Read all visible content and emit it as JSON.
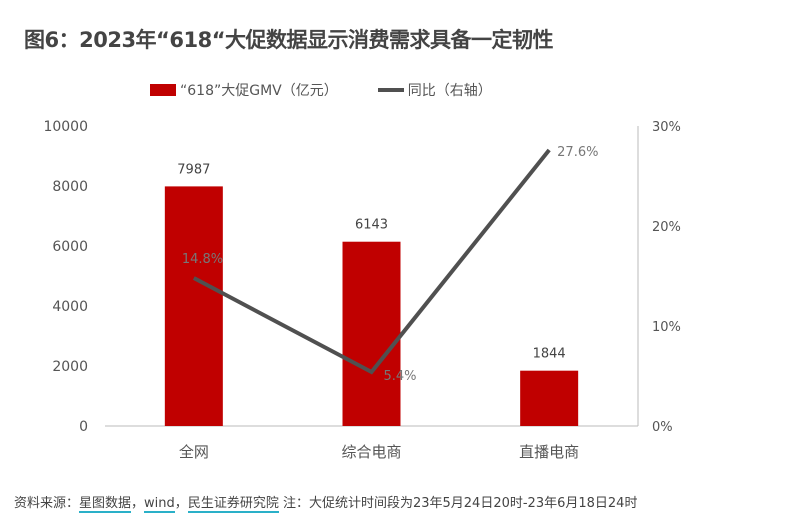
{
  "title": "图6：2023年“618“大促数据显示消费需求具备一定韧性",
  "footer": {
    "prefix": "资料来源：",
    "link1": "星图数据",
    "sep1": "，",
    "link2": "wind",
    "sep2": "，",
    "link3": "民生证券研究院",
    "note": " 注：大促统计时间段为23年5月24日20时-23年6月18日24时"
  },
  "chart_data": {
    "type": "bar+line",
    "categories": [
      "全网",
      "综合电商",
      "直播电商"
    ],
    "series": [
      {
        "name": "“618”大促GMV（亿元）",
        "type": "bar",
        "axis": "left",
        "values": [
          7987,
          6143,
          1844
        ],
        "labels": [
          "7987",
          "6143",
          "1844"
        ],
        "color": "#C00000"
      },
      {
        "name": "同比（右轴）",
        "type": "line",
        "axis": "right",
        "values": [
          14.8,
          5.4,
          27.6
        ],
        "labels": [
          "14.8%",
          "5.4%",
          "27.6%"
        ],
        "color": "#505050"
      }
    ],
    "left_axis": {
      "ylim": [
        0,
        10000
      ],
      "ticks": [
        "0",
        "2000",
        "4000",
        "6000",
        "8000",
        "10000"
      ]
    },
    "right_axis": {
      "ylim": [
        0,
        30
      ],
      "ticks": [
        "0%",
        "10%",
        "20%",
        "30%"
      ]
    },
    "legend": "top",
    "grid": false
  }
}
